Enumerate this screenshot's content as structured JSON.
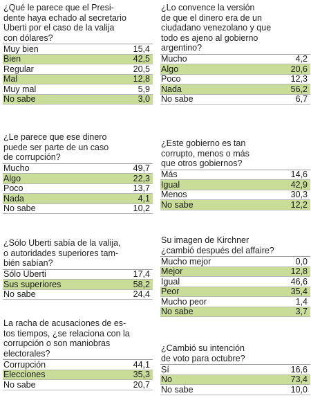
{
  "questions": [
    {
      "title": "¿Qué le parece que el Presi-\ndente haya echado al secretario\nUberti por el caso de la valija\ncon dólares?",
      "rows": [
        {
          "label": "Muy bien",
          "value": "15,4",
          "highlight": false
        },
        {
          "label": "Bien",
          "value": "42,5",
          "highlight": true
        },
        {
          "label": "Regular",
          "value": "20,5",
          "highlight": false
        },
        {
          "label": "Mal",
          "value": "12,8",
          "highlight": true
        },
        {
          "label": "Muy mal",
          "value": "5,9",
          "highlight": false
        },
        {
          "label": "No sabe",
          "value": "3,0",
          "highlight": true
        }
      ]
    },
    {
      "title": "¿Le parece que ese dinero\npuede ser parte de un caso\nde corrupción?",
      "rows": [
        {
          "label": "Mucho",
          "value": "49,7",
          "highlight": false
        },
        {
          "label": "Algo",
          "value": "22,3",
          "highlight": true
        },
        {
          "label": "Poco",
          "value": "13,7",
          "highlight": false
        },
        {
          "label": "Nada",
          "value": "4,1",
          "highlight": true
        },
        {
          "label": "No sabe",
          "value": "10,2",
          "highlight": false
        }
      ]
    },
    {
      "title": "¿Sólo Uberti sabía de la valija,\no autoridades superiores tam-\nbién sabían?",
      "rows": [
        {
          "label": "Sólo Uberti",
          "value": "17,4",
          "highlight": false
        },
        {
          "label": "Sus superiores",
          "value": "58,2",
          "highlight": true
        },
        {
          "label": "No sabe",
          "value": "24,4",
          "highlight": false
        }
      ]
    },
    {
      "title": "La racha de acusaciones de es-\ntos tiempos, ¿se relaciona con la\ncorrupción o son maniobras\nelectorales?",
      "rows": [
        {
          "label": "Corrupción",
          "value": "44,1",
          "highlight": false
        },
        {
          "label": "Elecciones",
          "value": "35,3",
          "highlight": true
        },
        {
          "label": "No sabe",
          "value": "20,7",
          "highlight": false
        }
      ]
    },
    {
      "title": "¿Lo convence la versión\nde que el dinero era de un\nciudadano venezolano y que\ntodo es ajeno al gobierno\nargentino?",
      "rows": [
        {
          "label": "Mucho",
          "value": "4,2",
          "highlight": false
        },
        {
          "label": "Algo",
          "value": "20,6",
          "highlight": true
        },
        {
          "label": "Poco",
          "value": "12,3",
          "highlight": false
        },
        {
          "label": "Nada",
          "value": "56,2",
          "highlight": true
        },
        {
          "label": "No sabe",
          "value": "6,7",
          "highlight": false
        }
      ]
    },
    {
      "title": "¿Este gobierno es tan\ncorrupto, menos o más\nque otros gobiernos?",
      "rows": [
        {
          "label": "Más",
          "value": "14,6",
          "highlight": false
        },
        {
          "label": "Igual",
          "value": "42,9",
          "highlight": true
        },
        {
          "label": "Menos",
          "value": "30,3",
          "highlight": false
        },
        {
          "label": "No sabe",
          "value": "12,2",
          "highlight": true
        }
      ]
    },
    {
      "title": "Su imagen de Kirchner\n¿cambió después del affaire?",
      "rows": [
        {
          "label": "Mucho mejor",
          "value": "0,0",
          "highlight": false
        },
        {
          "label": "Mejor",
          "value": "12,8",
          "highlight": true
        },
        {
          "label": "Igual",
          "value": "46,6",
          "highlight": false
        },
        {
          "label": "Peor",
          "value": "35,4",
          "highlight": true
        },
        {
          "label": "Mucho peor",
          "value": "1,4",
          "highlight": false
        },
        {
          "label": "No sabe",
          "value": "3,7",
          "highlight": true
        }
      ]
    },
    {
      "title": "¿Cambió su intención\nde voto para octubre?",
      "rows": [
        {
          "label": "Sí",
          "value": "16,6",
          "highlight": false
        },
        {
          "label": "No",
          "value": "73,4",
          "highlight": true
        },
        {
          "label": "No sabe",
          "value": "10,0",
          "highlight": false
        }
      ]
    }
  ],
  "colors": {
    "highlight": "#c9dc98",
    "rule": "#b8b8b8",
    "text": "#1a1a1a"
  }
}
